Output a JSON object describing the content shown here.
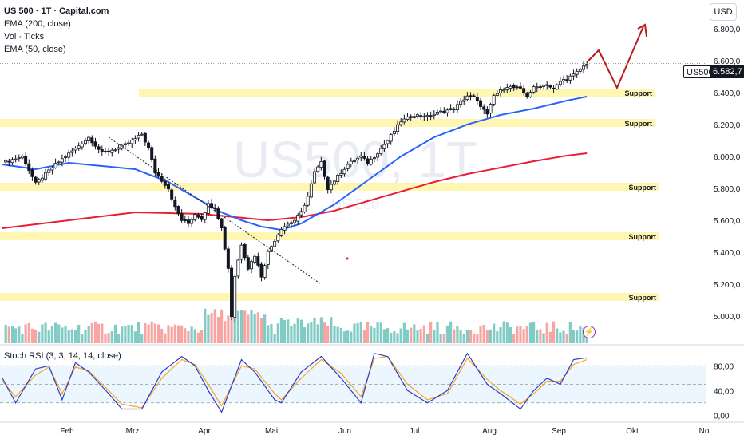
{
  "legend": {
    "symbol": "US 500 · 1T · Capital.com",
    "ema200": "EMA (200, close)",
    "vol": "Vol · Ticks",
    "ema50": "EMA (50, close)"
  },
  "currency": "USD",
  "watermark": {
    "main": "US500, 1T",
    "sub": "US 500"
  },
  "price_tag": {
    "symbol": "US500",
    "price": "6.582,7"
  },
  "colors": {
    "up": "#26a69a",
    "down": "#ef5350",
    "vol_up": "#80cbc4",
    "vol_down": "#f7a5a3",
    "ema50": "#2962ff",
    "ema200": "#e91e35",
    "support_zone": "#fff59d",
    "projection": "#b71c1c",
    "stoch_k": "#2f3dc7",
    "stoch_d": "#f5a623",
    "stoch_band": "#e3f2fd"
  },
  "chart_data": [
    {
      "type": "candlestick",
      "price_axis": {
        "ticks": [
          "6.800,0",
          "6.600,0",
          "6.400,0",
          "6.200,0",
          "6.000,0",
          "5.800,0",
          "5.600,0",
          "5.400,0",
          "5.200,0",
          "5.000,0"
        ],
        "values": [
          6800,
          6600,
          6400,
          6200,
          6000,
          5800,
          5600,
          5400,
          5200,
          5000
        ],
        "range": [
          4830,
          6920
        ]
      },
      "time_axis": [
        "Feb",
        "Mrz",
        "Apr",
        "Mai",
        "Jun",
        "Jul",
        "Aug",
        "Sep",
        "Okt",
        "No"
      ],
      "support_levels": [
        {
          "label": "Support",
          "price": 6400
        },
        {
          "label": "Support",
          "price": 6210
        },
        {
          "label": "Support",
          "price": 5810
        },
        {
          "label": "Support",
          "price": 5500
        },
        {
          "label": "Support",
          "price": 5120
        }
      ],
      "close_path": [
        [
          0,
          5960
        ],
        [
          6,
          6000
        ],
        [
          10,
          5830
        ],
        [
          16,
          5950
        ],
        [
          22,
          6050
        ],
        [
          26,
          6120
        ],
        [
          30,
          6020
        ],
        [
          36,
          6060
        ],
        [
          40,
          6110
        ],
        [
          42,
          6140
        ],
        [
          44,
          6050
        ],
        [
          46,
          5900
        ],
        [
          48,
          5850
        ],
        [
          50,
          5800
        ],
        [
          52,
          5680
        ],
        [
          54,
          5600
        ],
        [
          56,
          5580
        ],
        [
          58,
          5640
        ],
        [
          60,
          5610
        ],
        [
          62,
          5700
        ],
        [
          64,
          5680
        ],
        [
          66,
          5550
        ],
        [
          68,
          5300
        ],
        [
          69,
          5000
        ],
        [
          70,
          5250
        ],
        [
          72,
          5450
        ],
        [
          74,
          5300
        ],
        [
          76,
          5380
        ],
        [
          78,
          5250
        ],
        [
          80,
          5400
        ],
        [
          84,
          5550
        ],
        [
          88,
          5600
        ],
        [
          90,
          5650
        ],
        [
          92,
          5750
        ],
        [
          94,
          5900
        ],
        [
          96,
          5960
        ],
        [
          98,
          5800
        ],
        [
          100,
          5850
        ],
        [
          104,
          5950
        ],
        [
          108,
          6000
        ],
        [
          110,
          5960
        ],
        [
          112,
          6000
        ],
        [
          116,
          6100
        ],
        [
          120,
          6220
        ],
        [
          124,
          6260
        ],
        [
          128,
          6250
        ],
        [
          132,
          6280
        ],
        [
          136,
          6300
        ],
        [
          140,
          6380
        ],
        [
          142,
          6370
        ],
        [
          144,
          6320
        ],
        [
          146,
          6260
        ],
        [
          148,
          6380
        ],
        [
          152,
          6440
        ],
        [
          156,
          6420
        ],
        [
          158,
          6380
        ],
        [
          160,
          6430
        ],
        [
          164,
          6450
        ],
        [
          166,
          6420
        ],
        [
          168,
          6470
        ],
        [
          172,
          6510
        ],
        [
          174,
          6545
        ],
        [
          176,
          6583
        ]
      ],
      "ema50_path": [
        [
          0,
          5950
        ],
        [
          10,
          5920
        ],
        [
          20,
          5960
        ],
        [
          30,
          5940
        ],
        [
          40,
          5920
        ],
        [
          50,
          5840
        ],
        [
          60,
          5720
        ],
        [
          66,
          5650
        ],
        [
          72,
          5600
        ],
        [
          78,
          5560
        ],
        [
          84,
          5540
        ],
        [
          90,
          5580
        ],
        [
          100,
          5700
        ],
        [
          110,
          5850
        ],
        [
          120,
          6000
        ],
        [
          130,
          6120
        ],
        [
          140,
          6200
        ],
        [
          150,
          6260
        ],
        [
          160,
          6300
        ],
        [
          170,
          6350
        ],
        [
          176,
          6375
        ]
      ],
      "ema200_path": [
        [
          0,
          5550
        ],
        [
          20,
          5600
        ],
        [
          40,
          5650
        ],
        [
          60,
          5640
        ],
        [
          70,
          5620
        ],
        [
          80,
          5600
        ],
        [
          90,
          5620
        ],
        [
          100,
          5660
        ],
        [
          110,
          5720
        ],
        [
          120,
          5780
        ],
        [
          130,
          5840
        ],
        [
          140,
          5890
        ],
        [
          150,
          5930
        ],
        [
          160,
          5970
        ],
        [
          170,
          6005
        ],
        [
          176,
          6020
        ]
      ],
      "trendline": [
        [
          32,
          6120
        ],
        [
          96,
          5200
        ]
      ],
      "projection": [
        [
          176,
          6590
        ],
        [
          180,
          6710
        ],
        [
          186,
          6490
        ],
        [
          194,
          6840
        ],
        [
          196,
          6780
        ]
      ],
      "volume_range": [
        0,
        100
      ]
    },
    {
      "type": "line",
      "title": "Stoch RSI (3, 3, 14, 14, close)",
      "y_ticks": [
        "80,00",
        "40,00",
        "0,00"
      ],
      "y_values": [
        80,
        40,
        0
      ],
      "y_range": [
        -10,
        110
      ],
      "band": [
        20,
        80
      ],
      "k_anchors": [
        [
          0,
          60
        ],
        [
          4,
          20
        ],
        [
          10,
          75
        ],
        [
          14,
          80
        ],
        [
          18,
          25
        ],
        [
          22,
          85
        ],
        [
          26,
          70
        ],
        [
          32,
          35
        ],
        [
          36,
          10
        ],
        [
          42,
          10
        ],
        [
          48,
          70
        ],
        [
          54,
          95
        ],
        [
          58,
          80
        ],
        [
          62,
          40
        ],
        [
          66,
          5
        ],
        [
          72,
          90
        ],
        [
          76,
          70
        ],
        [
          82,
          25
        ],
        [
          84,
          20
        ],
        [
          90,
          70
        ],
        [
          96,
          95
        ],
        [
          102,
          60
        ],
        [
          108,
          20
        ],
        [
          112,
          100
        ],
        [
          116,
          95
        ],
        [
          122,
          40
        ],
        [
          128,
          20
        ],
        [
          134,
          40
        ],
        [
          140,
          100
        ],
        [
          146,
          50
        ],
        [
          150,
          35
        ],
        [
          156,
          10
        ],
        [
          160,
          40
        ],
        [
          164,
          60
        ],
        [
          168,
          50
        ],
        [
          172,
          90
        ],
        [
          176,
          93
        ]
      ],
      "d_anchors": [
        [
          0,
          55
        ],
        [
          4,
          30
        ],
        [
          10,
          65
        ],
        [
          14,
          78
        ],
        [
          18,
          35
        ],
        [
          22,
          78
        ],
        [
          26,
          72
        ],
        [
          32,
          40
        ],
        [
          36,
          18
        ],
        [
          42,
          12
        ],
        [
          48,
          60
        ],
        [
          54,
          90
        ],
        [
          58,
          82
        ],
        [
          62,
          50
        ],
        [
          66,
          15
        ],
        [
          72,
          80
        ],
        [
          76,
          75
        ],
        [
          82,
          35
        ],
        [
          84,
          25
        ],
        [
          90,
          60
        ],
        [
          96,
          90
        ],
        [
          102,
          68
        ],
        [
          108,
          30
        ],
        [
          112,
          92
        ],
        [
          116,
          95
        ],
        [
          122,
          50
        ],
        [
          128,
          25
        ],
        [
          134,
          35
        ],
        [
          140,
          92
        ],
        [
          146,
          58
        ],
        [
          150,
          40
        ],
        [
          156,
          18
        ],
        [
          160,
          35
        ],
        [
          164,
          55
        ],
        [
          168,
          55
        ],
        [
          172,
          82
        ],
        [
          176,
          90
        ]
      ]
    }
  ]
}
